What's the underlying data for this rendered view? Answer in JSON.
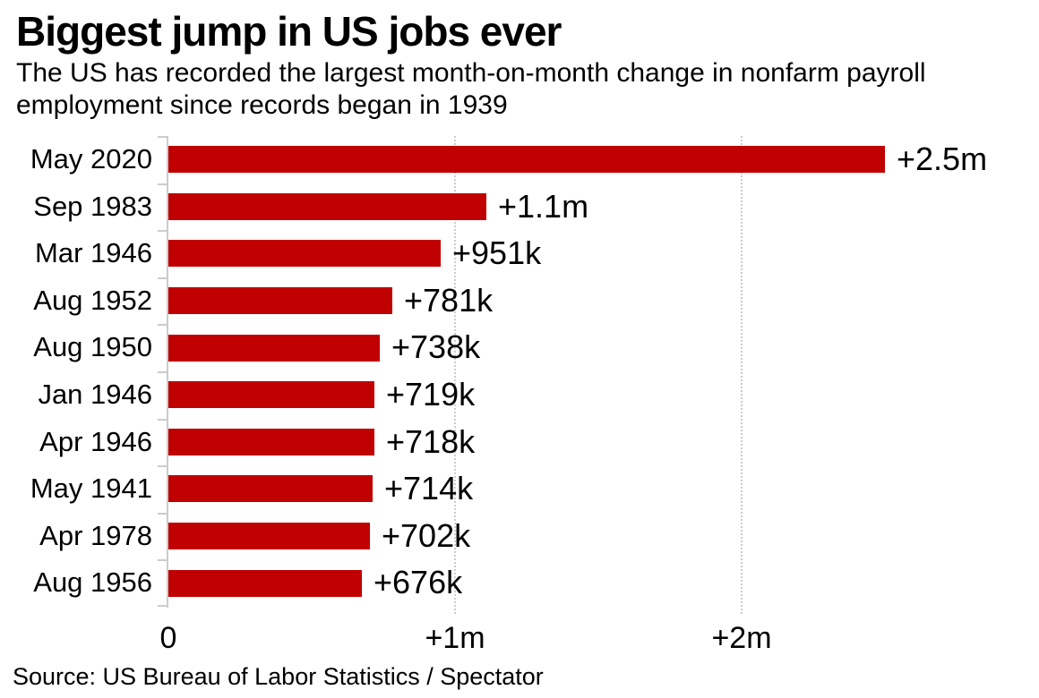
{
  "chart_data": {
    "type": "bar",
    "orientation": "horizontal",
    "title": "Biggest jump in US jobs ever",
    "subtitle": "The US has recorded the largest month-on-month change in nonfarm payroll employment since records began in 1939",
    "source": "Source: US Bureau of Labor Statistics / Spectator",
    "categories": [
      "May 2020",
      "Sep 1983",
      "Mar 1946",
      "Aug 1952",
      "Aug 1950",
      "Jan 1946",
      "Apr 1946",
      "May 1941",
      "Apr 1978",
      "Aug 1956"
    ],
    "values_millions": [
      2.5,
      1.11,
      0.951,
      0.781,
      0.738,
      0.719,
      0.718,
      0.714,
      0.702,
      0.676
    ],
    "value_labels": [
      "+2.5m",
      "+1.1m",
      "+951k",
      "+781k",
      "+738k",
      "+719k",
      "+718k",
      "+714k",
      "+702k",
      "+676k"
    ],
    "xlim_millions": [
      0,
      3
    ],
    "x_ticks": [
      {
        "label": "0",
        "value_millions": 0
      },
      {
        "label": "+1m",
        "value_millions": 1
      },
      {
        "label": "+2m",
        "value_millions": 2
      }
    ],
    "grid_vertical_dotted_at_millions": [
      1,
      2
    ],
    "legend": "none",
    "colors": {
      "bar": "#c00000",
      "axis": "#cccccc",
      "text": "#000000",
      "background": "#ffffff"
    }
  }
}
